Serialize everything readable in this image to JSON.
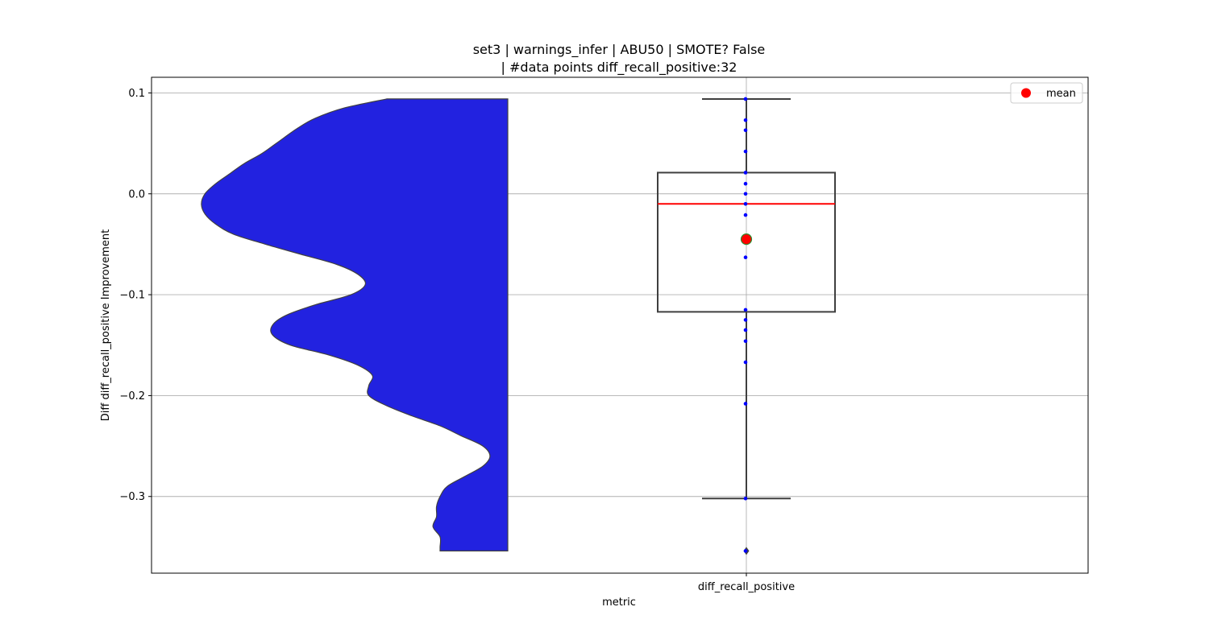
{
  "chart_data": {
    "type": "violin-box",
    "title_lines": [
      "set3 | warnings_infer | ABU50 | SMOTE? False",
      "| #data points diff_recall_positive:32"
    ],
    "xlabel": "metric",
    "ylabel": "Diff diff_recall_positive Improvement",
    "categories": [
      "diff_recall_positive"
    ],
    "ylim": [
      -0.376,
      0.1155
    ],
    "yticks": [
      0.1,
      0.0,
      -0.1,
      -0.2,
      -0.3
    ],
    "ytick_labels": [
      "0.1",
      "0.0",
      "−0.1",
      "−0.2",
      "−0.3"
    ],
    "grid": true,
    "legend": {
      "placement": "top-right",
      "entries": [
        {
          "label": "mean",
          "color": "#ff0000"
        }
      ]
    },
    "violin": {
      "color": "#2222e0",
      "density_profile": [
        [
          0.094,
          0.34
        ],
        [
          0.085,
          0.46
        ],
        [
          0.075,
          0.54
        ],
        [
          0.065,
          0.59
        ],
        [
          0.05,
          0.65
        ],
        [
          0.04,
          0.69
        ],
        [
          0.03,
          0.74
        ],
        [
          0.02,
          0.78
        ],
        [
          0.01,
          0.82
        ],
        [
          0.0,
          0.85
        ],
        [
          -0.01,
          0.86
        ],
        [
          -0.02,
          0.85
        ],
        [
          -0.03,
          0.82
        ],
        [
          -0.04,
          0.77
        ],
        [
          -0.05,
          0.68
        ],
        [
          -0.06,
          0.58
        ],
        [
          -0.07,
          0.48
        ],
        [
          -0.08,
          0.42
        ],
        [
          -0.09,
          0.4
        ],
        [
          -0.1,
          0.44
        ],
        [
          -0.11,
          0.54
        ],
        [
          -0.12,
          0.62
        ],
        [
          -0.13,
          0.66
        ],
        [
          -0.14,
          0.66
        ],
        [
          -0.15,
          0.61
        ],
        [
          -0.16,
          0.5
        ],
        [
          -0.17,
          0.42
        ],
        [
          -0.18,
          0.38
        ],
        [
          -0.19,
          0.39
        ],
        [
          -0.2,
          0.39
        ],
        [
          -0.21,
          0.34
        ],
        [
          -0.22,
          0.27
        ],
        [
          -0.23,
          0.19
        ],
        [
          -0.24,
          0.13
        ],
        [
          -0.25,
          0.07
        ],
        [
          -0.26,
          0.05
        ],
        [
          -0.27,
          0.07
        ],
        [
          -0.28,
          0.12
        ],
        [
          -0.29,
          0.17
        ],
        [
          -0.3,
          0.19
        ],
        [
          -0.31,
          0.2
        ],
        [
          -0.32,
          0.2
        ],
        [
          -0.33,
          0.21
        ],
        [
          -0.34,
          0.19
        ],
        [
          -0.35,
          0.19
        ],
        [
          -0.354,
          0.19
        ]
      ]
    },
    "box": {
      "q1": -0.117,
      "median": -0.01,
      "q3": 0.021,
      "whisker_low": -0.302,
      "whisker_high": 0.094,
      "mean": -0.045,
      "outliers": [
        -0.354
      ],
      "median_color": "#ff0000",
      "mean_color": "#ff0000"
    },
    "points": [
      0.094,
      0.073,
      0.063,
      0.042,
      0.021,
      0.01,
      0.0,
      -0.01,
      -0.021,
      -0.063,
      -0.115,
      -0.125,
      -0.135,
      -0.146,
      -0.167,
      -0.208,
      -0.302,
      -0.354
    ],
    "points_color": "#0000ff"
  }
}
